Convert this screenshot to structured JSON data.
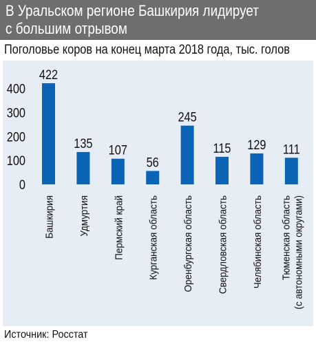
{
  "header": {
    "title_line1": "В Уральском регионе Башкирия лидирует",
    "title_line2": "с большим отрывом"
  },
  "subtitle": "Поголовье коров на конец марта 2018 года, тыс. голов",
  "source": "Источник: Росстат",
  "colors": {
    "header_bg": "#6e6e6e",
    "panel_bg": "#e6edf5",
    "bar": "#0a63b4"
  },
  "chart_data": {
    "type": "bar",
    "categories": [
      "Башкирия",
      "Удмуртия",
      "Пермский край",
      "Курганская область",
      "Оренбургская область",
      "Свердловская область",
      "Челябинская область",
      [
        "Тюменская область",
        "(с автономными округами)"
      ]
    ],
    "values": [
      422,
      135,
      107,
      56,
      245,
      115,
      129,
      111
    ],
    "data_labels": [
      "422",
      "135",
      "107",
      "56",
      "245",
      "115",
      "129",
      "111"
    ],
    "yticks": [
      0,
      100,
      200,
      300,
      400
    ],
    "ylim": [
      0,
      440
    ],
    "grid": false,
    "title": "",
    "xlabel": "",
    "ylabel": ""
  }
}
